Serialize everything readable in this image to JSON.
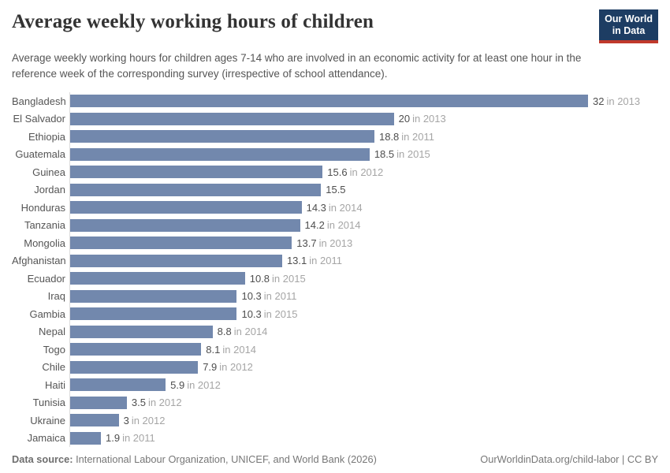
{
  "header": {
    "title": "Average weekly working hours of children",
    "subtitle": "Average weekly working hours for children ages 7-14 who are involved in an economic activity for at least one hour in the reference week of the corresponding survey (irrespective of school attendance).",
    "logo": {
      "line1": "Our World",
      "line2": "in Data"
    }
  },
  "chart_data": {
    "type": "bar",
    "orientation": "horizontal",
    "title": "Average weekly working hours of children",
    "xlabel": "",
    "ylabel": "",
    "xlim": [
      0,
      32
    ],
    "grid": false,
    "legend": "none",
    "categories": [
      "Bangladesh",
      "El Salvador",
      "Ethiopia",
      "Guatemala",
      "Guinea",
      "Jordan",
      "Honduras",
      "Tanzania",
      "Mongolia",
      "Afghanistan",
      "Ecuador",
      "Iraq",
      "Gambia",
      "Nepal",
      "Togo",
      "Chile",
      "Haiti",
      "Tunisia",
      "Ukraine",
      "Jamaica"
    ],
    "values": [
      32,
      20,
      18.8,
      18.5,
      15.6,
      15.5,
      14.3,
      14.2,
      13.7,
      13.1,
      10.8,
      10.3,
      10.3,
      8.8,
      8.1,
      7.9,
      5.9,
      3.5,
      3,
      1.9
    ],
    "value_labels": [
      "32",
      "20",
      "18.8",
      "18.5",
      "15.6",
      "15.5",
      "14.3",
      "14.2",
      "13.7",
      "13.1",
      "10.8",
      "10.3",
      "10.3",
      "8.8",
      "8.1",
      "7.9",
      "5.9",
      "3.5",
      "3",
      "1.9"
    ],
    "year_labels": [
      "in 2013",
      "in 2013",
      "in 2011",
      "in 2015",
      "in 2012",
      "",
      "in 2014",
      "in 2014",
      "in 2013",
      "in 2011",
      "in 2015",
      "in 2011",
      "in 2015",
      "in 2014",
      "in 2014",
      "in 2012",
      "in 2012",
      "in 2012",
      "in 2012",
      "in 2011"
    ]
  },
  "colors": {
    "bar": "#7288ad",
    "axis_line": "#dddddd",
    "logo_navy": "#1d3d63",
    "logo_red": "#c0392b",
    "value_text": "#4e4e4e",
    "year_text": "#a5a5a5"
  },
  "footer": {
    "source_label": "Data source:",
    "source_text": " International Labour Organization, UNICEF, and World Bank (2026)",
    "right_text": "OurWorldinData.org/child-labor | CC BY"
  }
}
